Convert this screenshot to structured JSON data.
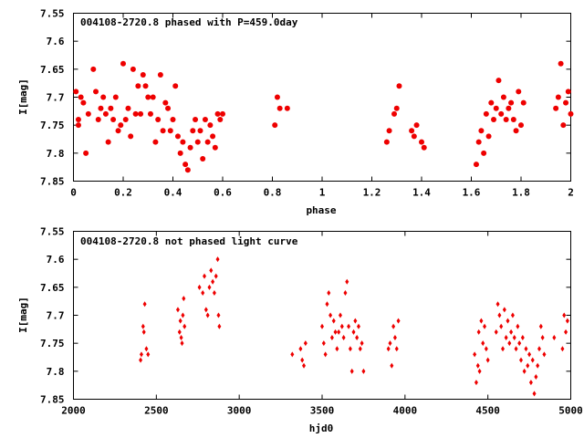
{
  "chart_data": [
    {
      "type": "scatter",
      "title": "004108-2720.8 phased with P=459.0day",
      "xlabel": "phase",
      "ylabel": "I[mag]",
      "xlim": [
        0,
        2
      ],
      "ylim": [
        7.55,
        7.85
      ],
      "y_inverted": true,
      "grid": false,
      "marker": "star",
      "color": "#ee0000",
      "xticks": [
        "0",
        "0.2",
        "0.4",
        "0.6",
        "0.8",
        "1",
        "1.2",
        "1.4",
        "1.6",
        "1.8",
        "2"
      ],
      "yticks": [
        "7.55",
        "7.6",
        "7.65",
        "7.7",
        "7.75",
        "7.8",
        "7.85"
      ],
      "points": [
        [
          0.01,
          7.69
        ],
        [
          0.02,
          7.74
        ],
        [
          0.02,
          7.75
        ],
        [
          0.03,
          7.7
        ],
        [
          0.04,
          7.71
        ],
        [
          0.05,
          7.8
        ],
        [
          0.06,
          7.73
        ],
        [
          0.08,
          7.65
        ],
        [
          0.09,
          7.69
        ],
        [
          0.1,
          7.74
        ],
        [
          0.11,
          7.72
        ],
        [
          0.12,
          7.7
        ],
        [
          0.13,
          7.73
        ],
        [
          0.14,
          7.78
        ],
        [
          0.15,
          7.72
        ],
        [
          0.16,
          7.74
        ],
        [
          0.17,
          7.7
        ],
        [
          0.18,
          7.76
        ],
        [
          0.19,
          7.75
        ],
        [
          0.2,
          7.64
        ],
        [
          0.21,
          7.74
        ],
        [
          0.22,
          7.72
        ],
        [
          0.23,
          7.77
        ],
        [
          0.24,
          7.65
        ],
        [
          0.25,
          7.73
        ],
        [
          0.26,
          7.68
        ],
        [
          0.27,
          7.73
        ],
        [
          0.28,
          7.66
        ],
        [
          0.29,
          7.68
        ],
        [
          0.3,
          7.7
        ],
        [
          0.31,
          7.73
        ],
        [
          0.32,
          7.7
        ],
        [
          0.33,
          7.78
        ],
        [
          0.34,
          7.74
        ],
        [
          0.35,
          7.66
        ],
        [
          0.36,
          7.76
        ],
        [
          0.37,
          7.71
        ],
        [
          0.38,
          7.72
        ],
        [
          0.39,
          7.76
        ],
        [
          0.4,
          7.74
        ],
        [
          0.41,
          7.68
        ],
        [
          0.42,
          7.77
        ],
        [
          0.43,
          7.8
        ],
        [
          0.44,
          7.78
        ],
        [
          0.45,
          7.82
        ],
        [
          0.46,
          7.83
        ],
        [
          0.47,
          7.79
        ],
        [
          0.48,
          7.76
        ],
        [
          0.49,
          7.74
        ],
        [
          0.5,
          7.78
        ],
        [
          0.51,
          7.76
        ],
        [
          0.52,
          7.81
        ],
        [
          0.53,
          7.74
        ],
        [
          0.54,
          7.78
        ],
        [
          0.55,
          7.75
        ],
        [
          0.56,
          7.77
        ],
        [
          0.57,
          7.79
        ],
        [
          0.58,
          7.73
        ],
        [
          0.59,
          7.74
        ],
        [
          0.6,
          7.73
        ],
        [
          0.81,
          7.75
        ],
        [
          0.82,
          7.7
        ],
        [
          0.83,
          7.72
        ],
        [
          0.86,
          7.72
        ],
        [
          1.26,
          7.78
        ],
        [
          1.27,
          7.76
        ],
        [
          1.29,
          7.73
        ],
        [
          1.3,
          7.72
        ],
        [
          1.31,
          7.68
        ],
        [
          1.36,
          7.76
        ],
        [
          1.37,
          7.77
        ],
        [
          1.38,
          7.75
        ],
        [
          1.4,
          7.78
        ],
        [
          1.41,
          7.79
        ],
        [
          1.62,
          7.82
        ],
        [
          1.63,
          7.78
        ],
        [
          1.64,
          7.76
        ],
        [
          1.65,
          7.8
        ],
        [
          1.66,
          7.73
        ],
        [
          1.67,
          7.77
        ],
        [
          1.68,
          7.71
        ],
        [
          1.69,
          7.74
        ],
        [
          1.7,
          7.72
        ],
        [
          1.71,
          7.67
        ],
        [
          1.72,
          7.73
        ],
        [
          1.73,
          7.7
        ],
        [
          1.74,
          7.74
        ],
        [
          1.75,
          7.72
        ],
        [
          1.76,
          7.71
        ],
        [
          1.77,
          7.74
        ],
        [
          1.78,
          7.76
        ],
        [
          1.79,
          7.69
        ],
        [
          1.8,
          7.75
        ],
        [
          1.81,
          7.71
        ],
        [
          1.94,
          7.72
        ],
        [
          1.95,
          7.7
        ],
        [
          1.96,
          7.64
        ],
        [
          1.97,
          7.75
        ],
        [
          1.98,
          7.71
        ],
        [
          1.99,
          7.69
        ],
        [
          2.0,
          7.73
        ]
      ]
    },
    {
      "type": "scatter",
      "title": "004108-2720.8 not phased light curve",
      "xlabel": "hjd0",
      "ylabel": "I[mag]",
      "xlim": [
        2000,
        5000
      ],
      "ylim": [
        7.55,
        7.85
      ],
      "y_inverted": true,
      "grid": false,
      "marker": "diamond",
      "color": "#ee0000",
      "xticks": [
        "2000",
        "2500",
        "3000",
        "3500",
        "4000",
        "4500",
        "5000"
      ],
      "yticks": [
        "7.55",
        "7.6",
        "7.65",
        "7.7",
        "7.75",
        "7.8",
        "7.85"
      ],
      "points": [
        [
          2405,
          7.78
        ],
        [
          2410,
          7.77
        ],
        [
          2420,
          7.72
        ],
        [
          2425,
          7.73
        ],
        [
          2430,
          7.68
        ],
        [
          2440,
          7.76
        ],
        [
          2450,
          7.77
        ],
        [
          2630,
          7.69
        ],
        [
          2640,
          7.73
        ],
        [
          2645,
          7.71
        ],
        [
          2650,
          7.74
        ],
        [
          2655,
          7.75
        ],
        [
          2660,
          7.7
        ],
        [
          2665,
          7.67
        ],
        [
          2670,
          7.72
        ],
        [
          2760,
          7.65
        ],
        [
          2780,
          7.66
        ],
        [
          2790,
          7.63
        ],
        [
          2800,
          7.69
        ],
        [
          2810,
          7.7
        ],
        [
          2820,
          7.65
        ],
        [
          2830,
          7.62
        ],
        [
          2840,
          7.64
        ],
        [
          2850,
          7.66
        ],
        [
          2860,
          7.63
        ],
        [
          2870,
          7.6
        ],
        [
          2875,
          7.7
        ],
        [
          2880,
          7.72
        ],
        [
          3320,
          7.77
        ],
        [
          3370,
          7.76
        ],
        [
          3380,
          7.78
        ],
        [
          3390,
          7.79
        ],
        [
          3400,
          7.75
        ],
        [
          3500,
          7.72
        ],
        [
          3510,
          7.75
        ],
        [
          3520,
          7.77
        ],
        [
          3530,
          7.68
        ],
        [
          3540,
          7.66
        ],
        [
          3550,
          7.7
        ],
        [
          3560,
          7.74
        ],
        [
          3570,
          7.71
        ],
        [
          3580,
          7.73
        ],
        [
          3590,
          7.76
        ],
        [
          3600,
          7.73
        ],
        [
          3610,
          7.7
        ],
        [
          3620,
          7.72
        ],
        [
          3630,
          7.74
        ],
        [
          3640,
          7.66
        ],
        [
          3650,
          7.64
        ],
        [
          3660,
          7.72
        ],
        [
          3670,
          7.76
        ],
        [
          3680,
          7.8
        ],
        [
          3690,
          7.73
        ],
        [
          3700,
          7.71
        ],
        [
          3710,
          7.74
        ],
        [
          3720,
          7.72
        ],
        [
          3730,
          7.76
        ],
        [
          3740,
          7.75
        ],
        [
          3750,
          7.8
        ],
        [
          3900,
          7.76
        ],
        [
          3910,
          7.75
        ],
        [
          3920,
          7.79
        ],
        [
          3930,
          7.72
        ],
        [
          3940,
          7.74
        ],
        [
          3950,
          7.76
        ],
        [
          3960,
          7.71
        ],
        [
          4420,
          7.77
        ],
        [
          4430,
          7.82
        ],
        [
          4440,
          7.79
        ],
        [
          4445,
          7.73
        ],
        [
          4450,
          7.8
        ],
        [
          4460,
          7.71
        ],
        [
          4470,
          7.75
        ],
        [
          4480,
          7.72
        ],
        [
          4490,
          7.76
        ],
        [
          4500,
          7.78
        ],
        [
          4550,
          7.73
        ],
        [
          4560,
          7.68
        ],
        [
          4570,
          7.7
        ],
        [
          4580,
          7.72
        ],
        [
          4590,
          7.76
        ],
        [
          4600,
          7.69
        ],
        [
          4610,
          7.74
        ],
        [
          4620,
          7.71
        ],
        [
          4630,
          7.75
        ],
        [
          4640,
          7.73
        ],
        [
          4650,
          7.7
        ],
        [
          4660,
          7.74
        ],
        [
          4670,
          7.76
        ],
        [
          4680,
          7.72
        ],
        [
          4690,
          7.75
        ],
        [
          4700,
          7.78
        ],
        [
          4710,
          7.74
        ],
        [
          4720,
          7.8
        ],
        [
          4730,
          7.76
        ],
        [
          4740,
          7.79
        ],
        [
          4750,
          7.77
        ],
        [
          4760,
          7.82
        ],
        [
          4770,
          7.78
        ],
        [
          4780,
          7.84
        ],
        [
          4790,
          7.81
        ],
        [
          4800,
          7.79
        ],
        [
          4810,
          7.76
        ],
        [
          4820,
          7.72
        ],
        [
          4830,
          7.74
        ],
        [
          4840,
          7.77
        ],
        [
          4900,
          7.74
        ],
        [
          4950,
          7.76
        ],
        [
          4960,
          7.7
        ],
        [
          4970,
          7.73
        ],
        [
          4980,
          7.71
        ]
      ]
    }
  ]
}
